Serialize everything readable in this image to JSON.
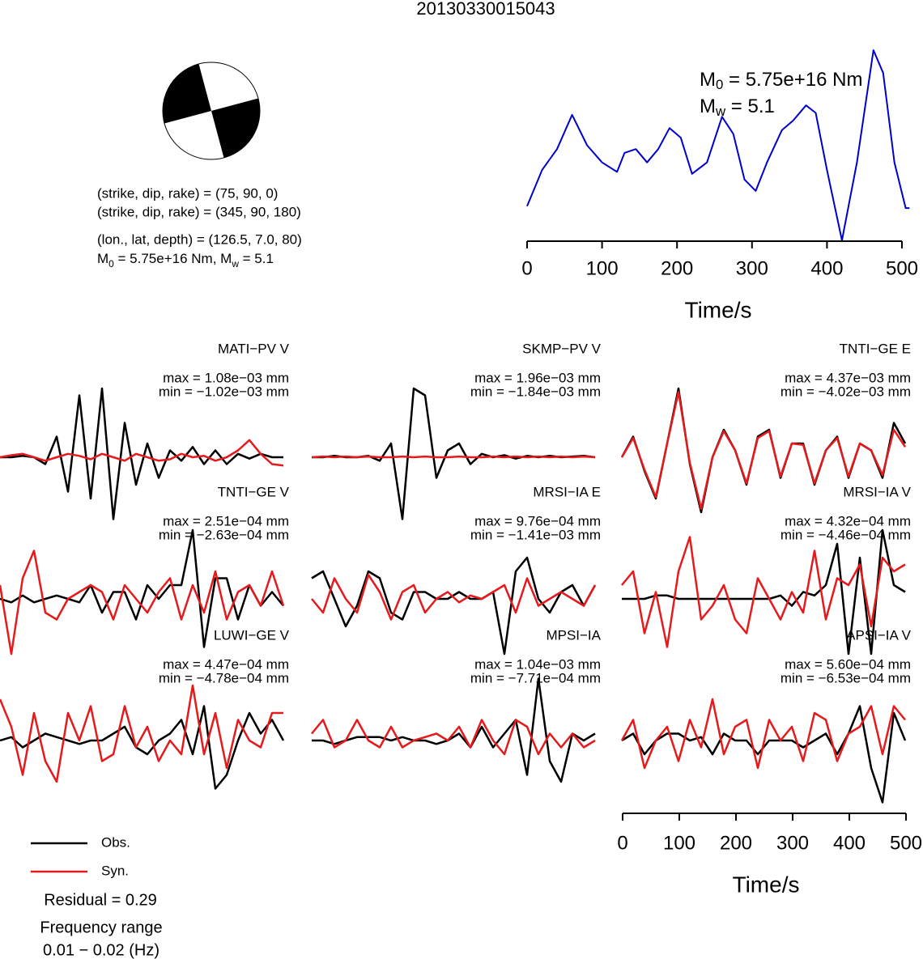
{
  "title": "20130330015043",
  "mechanism": {
    "planes": [
      "(strike, dip, rake) = (75, 90, 0)",
      "(strike, dip, rake) = (345, 90, 180)"
    ],
    "location": "(lon., lat, depth) = (126.5, 7.0, 80)",
    "moment": [
      "M",
      "0",
      " = 5.75e+16 Nm, M",
      "w",
      " = 5.1"
    ]
  },
  "legend": [
    {
      "name": "Obs.",
      "color": "#000000"
    },
    {
      "name": "Syn.",
      "color": "#e41a1c"
    }
  ],
  "notes": [
    "Residual = 0.29",
    "Frequency range",
    "0.01 − 0.02 (Hz)"
  ],
  "chart_data": [
    {
      "type": "line",
      "xlabel": "Time/s",
      "annotations": [
        [
          "M",
          "0",
          " = 5.75e+16 Nm"
        ],
        [
          "M",
          "w",
          " = 5.1"
        ]
      ],
      "x": [
        0,
        20,
        40,
        60,
        80,
        100,
        120,
        130,
        145,
        160,
        175,
        190,
        205,
        220,
        240,
        260,
        275,
        290,
        305,
        320,
        340,
        355,
        372,
        385,
        400,
        420,
        440,
        462,
        475,
        490,
        505,
        510
      ],
      "values": [
        0.18,
        0.37,
        0.48,
        0.66,
        0.5,
        0.41,
        0.36,
        0.46,
        0.48,
        0.41,
        0.48,
        0.59,
        0.54,
        0.35,
        0.41,
        0.65,
        0.56,
        0.32,
        0.26,
        0.41,
        0.58,
        0.63,
        0.71,
        0.67,
        0.37,
        0.0,
        0.41,
        1.0,
        0.88,
        0.41,
        0.17,
        0.17
      ],
      "color": "#0000cc",
      "xlim": [
        0,
        510
      ],
      "ylim": [
        0,
        1
      ],
      "xticks": [
        0,
        100,
        200,
        300,
        400,
        500
      ]
    },
    {
      "type": "line",
      "title": "MATI−PV V",
      "max_label": "max = 1.08e−03 mm",
      "min_label": "min = −1.02e−03 mm",
      "x": [
        0,
        20,
        40,
        60,
        80,
        100,
        120,
        140,
        160,
        180,
        200,
        220,
        240,
        260,
        280,
        300,
        320,
        340,
        360,
        380,
        400,
        420,
        440,
        460,
        480,
        500
      ],
      "xlim": [
        0,
        510
      ],
      "ylim": [
        -1,
        1
      ],
      "series": [
        {
          "color": "#000000",
          "values": [
            0,
            0,
            0.02,
            0,
            -0.1,
            0.3,
            -0.5,
            0.9,
            -0.6,
            1.0,
            -0.9,
            0.5,
            -0.4,
            0.2,
            -0.3,
            0.1,
            -0.05,
            0.15,
            -0.1,
            0.1,
            -0.1,
            0.05,
            -0.02,
            0.05,
            0,
            0
          ]
        },
        {
          "color": "#e41a1c",
          "values": [
            0,
            0.03,
            0.05,
            0,
            -0.05,
            0,
            0.05,
            0.02,
            -0.03,
            0.05,
            0,
            -0.05,
            0.05,
            0,
            -0.05,
            -0.03,
            0.05,
            0,
            0.02,
            -0.05,
            0,
            0.1,
            0.25,
            0.05,
            -0.1,
            -0.12
          ]
        }
      ]
    },
    {
      "type": "line",
      "title": "SKMP−PV V",
      "max_label": "max = 1.96e−03 mm",
      "min_label": "min = −1.84e−03 mm",
      "x": [
        0,
        20,
        40,
        60,
        80,
        100,
        120,
        140,
        160,
        180,
        200,
        220,
        240,
        260,
        280,
        300,
        320,
        340,
        360,
        380,
        400,
        420,
        440,
        460,
        480,
        500
      ],
      "xlim": [
        0,
        510
      ],
      "ylim": [
        -1,
        1
      ],
      "series": [
        {
          "color": "#000000",
          "values": [
            0,
            0,
            0.02,
            0,
            0,
            0.02,
            -0.05,
            0.2,
            -0.9,
            1.0,
            0.9,
            -0.3,
            0.1,
            0.2,
            -0.1,
            0.05,
            0,
            0.03,
            -0.02,
            0.02,
            0,
            0.02,
            0,
            0.01,
            0.02,
            0
          ]
        },
        {
          "color": "#e41a1c",
          "values": [
            0,
            0.01,
            0,
            0.01,
            0,
            0.01,
            0,
            0,
            0.01,
            0,
            0.01,
            0,
            0,
            0.01,
            0,
            0,
            0.01,
            0,
            0.01,
            0,
            0.01,
            0,
            0.01,
            0,
            0.01,
            0
          ]
        }
      ]
    },
    {
      "type": "line",
      "title": "TNTI−GE E",
      "max_label": "max = 4.37e−03 mm",
      "min_label": "min = −4.02e−03 mm",
      "x": [
        0,
        20,
        40,
        60,
        80,
        100,
        120,
        140,
        160,
        180,
        200,
        220,
        240,
        260,
        280,
        300,
        320,
        340,
        360,
        380,
        400,
        420,
        440,
        460,
        480,
        500
      ],
      "xlim": [
        0,
        510
      ],
      "ylim": [
        -1,
        1
      ],
      "series": [
        {
          "color": "#000000",
          "values": [
            0,
            0.3,
            -0.2,
            -0.6,
            0.2,
            1.0,
            -0.1,
            -0.8,
            0,
            0.4,
            0.1,
            -0.4,
            0.3,
            0.4,
            -0.3,
            0.2,
            0.2,
            -0.4,
            0.1,
            0.3,
            -0.3,
            0.2,
            0.1,
            -0.3,
            0.5,
            0.2
          ]
        },
        {
          "color": "#e41a1c",
          "values": [
            0,
            0.28,
            -0.18,
            -0.58,
            0.2,
            0.95,
            -0.08,
            -0.75,
            0,
            0.38,
            0.1,
            -0.38,
            0.28,
            0.38,
            -0.28,
            0.2,
            0.18,
            -0.38,
            0.1,
            0.28,
            -0.28,
            0.2,
            0.1,
            -0.26,
            0.4,
            0.15
          ]
        }
      ]
    },
    {
      "type": "line",
      "title": "TNTI−GE V",
      "max_label": "max = 2.51e−04 mm",
      "min_label": "min = −2.63e−04 mm",
      "x": [
        0,
        20,
        40,
        60,
        80,
        100,
        120,
        140,
        160,
        180,
        200,
        220,
        240,
        260,
        280,
        300,
        320,
        340,
        360,
        380,
        400,
        420,
        440,
        460,
        480,
        500
      ],
      "xlim": [
        0,
        510
      ],
      "ylim": [
        -1,
        1
      ],
      "series": [
        {
          "color": "#000000",
          "values": [
            0,
            -0.05,
            0.05,
            -0.05,
            0,
            0.05,
            0,
            -0.05,
            0.2,
            -0.2,
            0.1,
            0.1,
            -0.3,
            0.2,
            0,
            0.2,
            0.2,
            1.0,
            -0.7,
            0.3,
            0.3,
            -0.3,
            0.2,
            -0.1,
            0.1,
            -0.1
          ]
        },
        {
          "color": "#e41a1c",
          "values": [
            0.2,
            -0.8,
            0.3,
            0.7,
            -0.2,
            -0.3,
            0,
            0.1,
            0.2,
            0.1,
            -0.3,
            0.2,
            0,
            -0.2,
            0.1,
            0.3,
            -0.3,
            0.2,
            -0.2,
            0.4,
            -0.3,
            0.1,
            0.2,
            -0.1,
            0.4,
            -0.1
          ]
        }
      ]
    },
    {
      "type": "line",
      "title": "MRSI−IA E",
      "max_label": "max = 9.76e−04 mm",
      "min_label": "min = −1.41e−03 mm",
      "x": [
        0,
        20,
        40,
        60,
        80,
        100,
        120,
        140,
        160,
        180,
        200,
        220,
        240,
        260,
        280,
        300,
        320,
        340,
        360,
        380,
        400,
        420,
        440,
        460,
        480,
        500
      ],
      "xlim": [
        0,
        510
      ],
      "ylim": [
        -1,
        1
      ],
      "series": [
        {
          "color": "#000000",
          "values": [
            0.3,
            0.4,
            0,
            -0.4,
            -0.1,
            0.4,
            0.3,
            -0.2,
            -0.3,
            0.1,
            0.1,
            0,
            0,
            0.1,
            0,
            0,
            0.1,
            -0.8,
            0.4,
            0.6,
            0,
            -0.2,
            0.1,
            0.2,
            -0.1,
            0.2
          ]
        },
        {
          "color": "#e41a1c",
          "values": [
            0,
            -0.2,
            0.3,
            0,
            -0.2,
            0.35,
            0.1,
            -0.3,
            0.1,
            0.2,
            -0.2,
            0,
            0.1,
            -0.05,
            0.05,
            0,
            0.1,
            0.2,
            -0.2,
            0.3,
            -0.1,
            0,
            0.1,
            0,
            -0.1,
            0.2
          ]
        }
      ]
    },
    {
      "type": "line",
      "title": "MRSI−IA V",
      "max_label": "max = 4.32e−04 mm",
      "min_label": "min = −4.46e−04 mm",
      "x": [
        0,
        20,
        40,
        60,
        80,
        100,
        120,
        140,
        160,
        180,
        200,
        220,
        240,
        260,
        280,
        300,
        320,
        340,
        360,
        380,
        400,
        420,
        440,
        460,
        480,
        500
      ],
      "xlim": [
        0,
        510
      ],
      "ylim": [
        -1,
        1
      ],
      "series": [
        {
          "color": "#000000",
          "values": [
            0,
            0,
            0,
            0.05,
            0.05,
            0,
            0,
            0,
            0,
            0,
            0,
            0,
            0,
            0,
            0.05,
            -0.1,
            0.1,
            0.05,
            0.2,
            0.8,
            -0.8,
            0.6,
            -0.8,
            1.0,
            0.2,
            0.1
          ]
        },
        {
          "color": "#e41a1c",
          "values": [
            0.2,
            0.4,
            -0.5,
            0.1,
            -0.7,
            0.4,
            0.9,
            -0.3,
            -0.1,
            0.2,
            -0.3,
            -0.5,
            0.3,
            0,
            -0.3,
            0.1,
            -0.2,
            0.7,
            -0.3,
            0.3,
            0.2,
            0.5,
            -0.4,
            0.6,
            0.4,
            0.5
          ]
        }
      ]
    },
    {
      "type": "line",
      "title": "LUWI−GE V",
      "max_label": "max = 4.47e−04 mm",
      "min_label": "min = −4.78e−04 mm",
      "x": [
        0,
        20,
        40,
        60,
        80,
        100,
        120,
        140,
        160,
        180,
        200,
        220,
        240,
        260,
        280,
        300,
        320,
        340,
        360,
        380,
        400,
        420,
        440,
        460,
        480,
        500
      ],
      "xlim": [
        0,
        510
      ],
      "ylim": [
        -1,
        1
      ],
      "series": [
        {
          "color": "#000000",
          "values": [
            0,
            0.05,
            -0.1,
            0,
            0.1,
            0.05,
            0,
            -0.05,
            0,
            0,
            0.1,
            0.2,
            -0.1,
            -0.2,
            0,
            0.1,
            0.3,
            -0.2,
            0.5,
            -0.7,
            -0.5,
            0,
            0.4,
            0.1,
            0.3,
            0
          ]
        },
        {
          "color": "#e41a1c",
          "values": [
            0.6,
            0.2,
            -0.5,
            0.4,
            -0.3,
            -0.6,
            0.4,
            0,
            0.5,
            -0.3,
            -0.2,
            0.5,
            -0.1,
            0.2,
            -0.3,
            0,
            -0.2,
            0.8,
            -0.2,
            0.4,
            -0.4,
            0.3,
            0,
            -0.1,
            0.4,
            0.4
          ]
        }
      ]
    },
    {
      "type": "line",
      "title": "MPSI−IA",
      "max_label": "max = 1.04e−03 mm",
      "min_label": "min = −7.71e−04 mm",
      "x": [
        0,
        20,
        40,
        60,
        80,
        100,
        120,
        140,
        160,
        180,
        200,
        220,
        240,
        260,
        280,
        300,
        320,
        340,
        360,
        380,
        400,
        420,
        440,
        460,
        480,
        500
      ],
      "xlim": [
        0,
        510
      ],
      "ylim": [
        -1,
        1
      ],
      "series": [
        {
          "color": "#000000",
          "values": [
            0,
            0,
            -0.05,
            0,
            0.05,
            0.05,
            0.05,
            0,
            0.05,
            0,
            0,
            -0.05,
            0,
            0.1,
            -0.1,
            0.2,
            -0.1,
            0.1,
            0.3,
            -0.5,
            0.9,
            -0.3,
            -0.6,
            0.1,
            0,
            0.1
          ]
        },
        {
          "color": "#e41a1c",
          "values": [
            0.1,
            0.3,
            -0.1,
            0,
            0.3,
            0,
            -0.1,
            0.2,
            -0.1,
            0,
            0.05,
            0.1,
            0,
            0.2,
            -0.1,
            0.3,
            0,
            -0.2,
            0.3,
            0.2,
            -0.2,
            0.1,
            -0.1,
            0.1,
            -0.1,
            0
          ]
        }
      ]
    },
    {
      "type": "line",
      "title": "APSI−IA V",
      "max_label": "max = 5.60e−04 mm",
      "min_label": "min = −6.53e−04 mm",
      "x": [
        0,
        20,
        40,
        60,
        80,
        100,
        120,
        140,
        160,
        180,
        200,
        220,
        240,
        260,
        280,
        300,
        320,
        340,
        360,
        380,
        400,
        420,
        440,
        460,
        480,
        500
      ],
      "xlim": [
        0,
        510
      ],
      "ylim": [
        -1,
        1
      ],
      "xticks": [
        0,
        100,
        200,
        300,
        400,
        500
      ],
      "xlabel": "Time/s",
      "series": [
        {
          "color": "#000000",
          "values": [
            0,
            0.1,
            -0.2,
            0,
            0.1,
            0.1,
            0,
            0.05,
            -0.2,
            0.1,
            0,
            0,
            -0.2,
            0,
            0,
            0,
            -0.1,
            0,
            0.1,
            -0.2,
            0.1,
            0.5,
            -0.4,
            -0.9,
            0.4,
            0
          ]
        },
        {
          "color": "#e41a1c",
          "values": [
            0,
            0.3,
            -0.4,
            0,
            0.2,
            -0.3,
            0.3,
            -0.1,
            0.6,
            -0.2,
            0.2,
            0.3,
            -0.4,
            0.3,
            0,
            0.2,
            -0.3,
            0.4,
            0.3,
            -0.3,
            0.1,
            0.2,
            0.5,
            -0.2,
            0.5,
            0.3
          ]
        }
      ]
    }
  ]
}
